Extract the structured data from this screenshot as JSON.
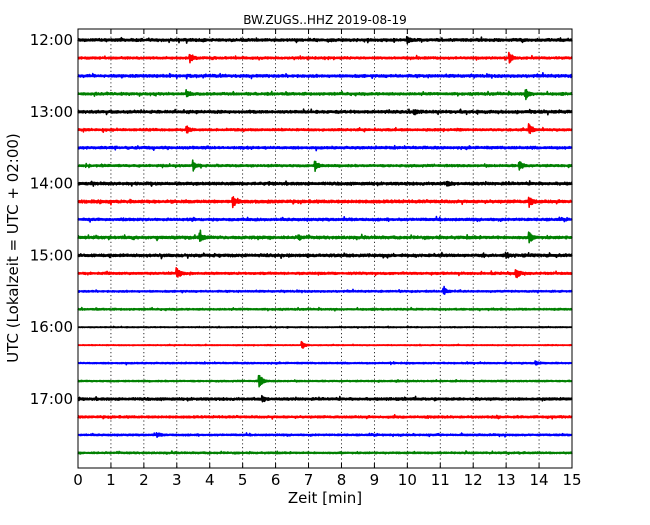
{
  "chart_data": {
    "type": "line",
    "title": "BW.ZUGS..HHZ 2019-08-19",
    "xlabel": "Zeit  [min]",
    "ylabel": "UTC (Lokalzeit = UTC + 02:00)",
    "xlim": [
      0,
      15
    ],
    "x_ticks": [
      "0",
      "1",
      "2",
      "3",
      "4",
      "5",
      "6",
      "7",
      "8",
      "9",
      "10",
      "11",
      "12",
      "13",
      "14",
      "15"
    ],
    "y_ticks": [
      "12:00",
      "13:00",
      "14:00",
      "15:00",
      "16:00",
      "17:00"
    ],
    "trace_colors": [
      "#000000",
      "#ff0000",
      "#0000ff",
      "#008000"
    ],
    "grid": "vertical dotted lines at each minute",
    "traces": [
      {
        "start": "12:00",
        "noise": 1.0,
        "events": [
          [
            10.0,
            2.5
          ]
        ]
      },
      {
        "start": "12:15",
        "noise": 0.8,
        "events": [
          [
            3.4,
            4.5
          ],
          [
            13.1,
            5
          ]
        ]
      },
      {
        "start": "12:30",
        "noise": 1.0,
        "events": []
      },
      {
        "start": "12:45",
        "noise": 0.9,
        "events": [
          [
            3.3,
            3
          ],
          [
            13.6,
            5
          ]
        ]
      },
      {
        "start": "13:00",
        "noise": 1.0,
        "events": [
          [
            10.2,
            2.5
          ]
        ]
      },
      {
        "start": "13:15",
        "noise": 0.8,
        "events": [
          [
            3.3,
            4
          ],
          [
            13.7,
            5
          ]
        ]
      },
      {
        "start": "13:30",
        "noise": 0.9,
        "events": []
      },
      {
        "start": "13:45",
        "noise": 0.8,
        "events": [
          [
            3.5,
            5
          ],
          [
            7.2,
            5
          ],
          [
            13.4,
            5
          ]
        ]
      },
      {
        "start": "14:00",
        "noise": 1.0,
        "events": [
          [
            11.2,
            2.5
          ]
        ]
      },
      {
        "start": "14:15",
        "noise": 1.1,
        "events": [
          [
            4.7,
            5
          ],
          [
            13.7,
            5
          ]
        ]
      },
      {
        "start": "14:30",
        "noise": 0.9,
        "events": []
      },
      {
        "start": "14:45",
        "noise": 1.0,
        "events": [
          [
            3.7,
            5
          ],
          [
            6.7,
            2.5
          ],
          [
            13.7,
            5
          ]
        ]
      },
      {
        "start": "15:00",
        "noise": 1.0,
        "events": [
          [
            13.0,
            2.5
          ]
        ]
      },
      {
        "start": "15:15",
        "noise": 0.8,
        "events": [
          [
            3.0,
            5
          ],
          [
            13.3,
            5
          ]
        ]
      },
      {
        "start": "15:30",
        "noise": 0.6,
        "events": [
          [
            11.1,
            4
          ]
        ]
      },
      {
        "start": "15:45",
        "noise": 0.6,
        "events": []
      },
      {
        "start": "16:00",
        "noise": 0.3,
        "events": []
      },
      {
        "start": "16:15",
        "noise": 0.3,
        "events": [
          [
            6.8,
            4
          ]
        ]
      },
      {
        "start": "16:30",
        "noise": 0.5,
        "events": [
          [
            13.9,
            2
          ]
        ]
      },
      {
        "start": "16:45",
        "noise": 0.5,
        "events": [
          [
            5.5,
            8
          ]
        ]
      },
      {
        "start": "17:00",
        "noise": 0.9,
        "events": [
          [
            5.6,
            2.5
          ]
        ]
      },
      {
        "start": "17:15",
        "noise": 0.8,
        "events": []
      },
      {
        "start": "17:30",
        "noise": 0.6,
        "events": [
          [
            2.4,
            2
          ]
        ]
      },
      {
        "start": "17:45",
        "noise": 0.6,
        "events": []
      }
    ]
  }
}
